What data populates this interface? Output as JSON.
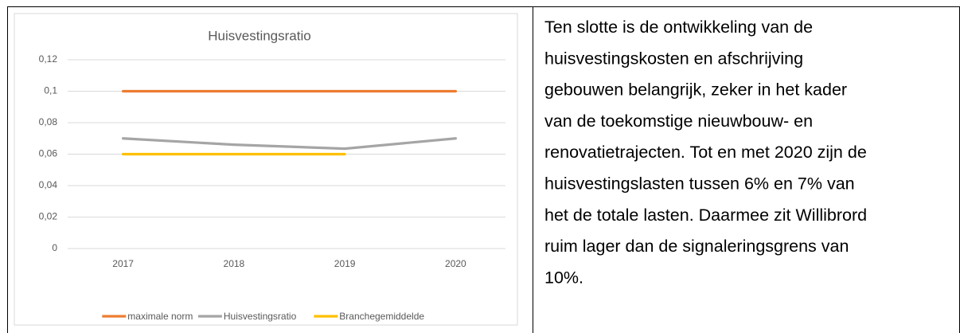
{
  "chart_data": {
    "type": "line",
    "title": "Huisvestingsratio",
    "categories": [
      "2017",
      "2018",
      "2019",
      "2020"
    ],
    "series": [
      {
        "name": "maximale norm",
        "color": "#ed7d31",
        "values": [
          0.1,
          0.1,
          0.1,
          0.1
        ]
      },
      {
        "name": "Huisvestingsratio",
        "color": "#a5a5a5",
        "values": [
          0.07,
          0.066,
          0.0635,
          0.07
        ]
      },
      {
        "name": "Branchegemiddelde",
        "color": "#ffc000",
        "values": [
          0.06,
          0.06,
          0.06,
          null
        ]
      }
    ],
    "ylim": [
      0,
      0.12
    ],
    "yticks": [
      0,
      {
        "value": 0.02,
        "label": "0,02"
      },
      {
        "value": 0.04,
        "label": "0,04"
      },
      {
        "value": 0.06,
        "label": "0,06"
      },
      {
        "value": 0.08,
        "label": "0,08"
      },
      {
        "value": 0.1,
        "label": "0,1"
      },
      {
        "value": 0.12,
        "label": "0,12"
      }
    ],
    "grid": true,
    "legend": "bottom"
  },
  "text": {
    "lines": [
      "Ten slotte is de ontwikkeling van de",
      "huisvestingskosten en afschrijving",
      "gebouwen belangrijk, zeker in het kader",
      "van de toekomstige nieuwbouw- en",
      "renovatietrajecten. Tot en met 2020 zijn de",
      "huisvestingslasten tussen 6% en 7% van",
      "het de totale lasten. Daarmee zit Willibrord",
      "ruim lager dan de signaleringsgrens van",
      "10%."
    ]
  }
}
